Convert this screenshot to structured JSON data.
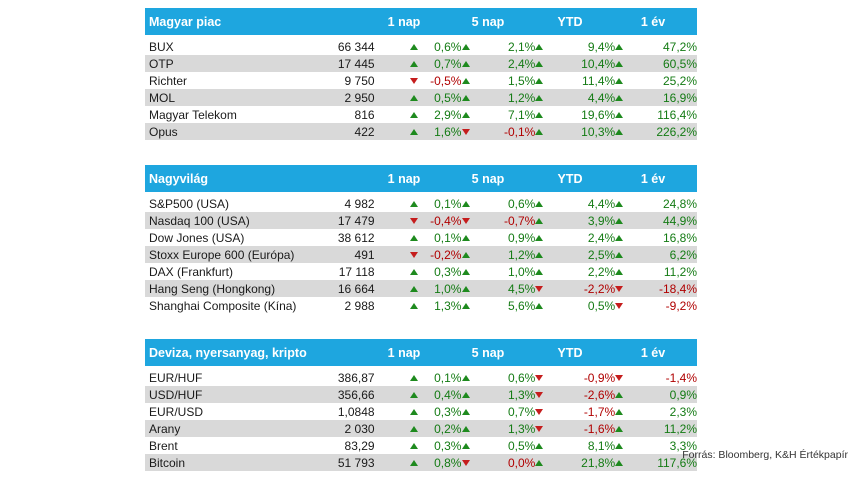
{
  "colors": {
    "header_bg": "#1ea6df",
    "alt_row": "#d9d9d9",
    "positive": "#147b14",
    "negative": "#b00000"
  },
  "columns": [
    "1 nap",
    "5 nap",
    "YTD",
    "1 év"
  ],
  "sections": [
    {
      "title": "Magyar piac",
      "rows": [
        {
          "name": "BUX",
          "value": "66 344",
          "d1": "0,6%",
          "d5": "2,1%",
          "ytd": "9,4%",
          "y1": "47,2%"
        },
        {
          "name": "OTP",
          "value": "17 445",
          "d1": "0,7%",
          "d5": "2,4%",
          "ytd": "10,4%",
          "y1": "60,5%"
        },
        {
          "name": "Richter",
          "value": "9 750",
          "d1": "-0,5%",
          "d5": "1,5%",
          "ytd": "11,4%",
          "y1": "25,2%"
        },
        {
          "name": "MOL",
          "value": "2 950",
          "d1": "0,5%",
          "d5": "1,2%",
          "ytd": "4,4%",
          "y1": "16,9%"
        },
        {
          "name": "Magyar Telekom",
          "value": "816",
          "d1": "2,9%",
          "d5": "7,1%",
          "ytd": "19,6%",
          "y1": "116,4%"
        },
        {
          "name": "Opus",
          "value": "422",
          "d1": "1,6%",
          "d5": "-0,1%",
          "ytd": "10,3%",
          "y1": "226,2%"
        }
      ]
    },
    {
      "title": "Nagyvilág",
      "rows": [
        {
          "name": "S&P500 (USA)",
          "value": "4 982",
          "d1": "0,1%",
          "d5": "0,6%",
          "ytd": "4,4%",
          "y1": "24,8%"
        },
        {
          "name": "Nasdaq 100 (USA)",
          "value": "17 479",
          "d1": "-0,4%",
          "d5": "-0,7%",
          "ytd": "3,9%",
          "y1": "44,9%"
        },
        {
          "name": "Dow Jones (USA)",
          "value": "38 612",
          "d1": "0,1%",
          "d5": "0,9%",
          "ytd": "2,4%",
          "y1": "16,8%"
        },
        {
          "name": "Stoxx Europe 600 (Európa)",
          "value": "491",
          "d1": "-0,2%",
          "d5": "1,2%",
          "ytd": "2,5%",
          "y1": "6,2%"
        },
        {
          "name": "DAX (Frankfurt)",
          "value": "17 118",
          "d1": "0,3%",
          "d5": "1,0%",
          "ytd": "2,2%",
          "y1": "11,2%"
        },
        {
          "name": "Hang Seng (Hongkong)",
          "value": "16 664",
          "d1": "1,0%",
          "d5": "4,5%",
          "ytd": "-2,2%",
          "y1": "-18,4%"
        },
        {
          "name": "Shanghai Composite (Kína)",
          "value": "2 988",
          "d1": "1,3%",
          "d5": "5,6%",
          "ytd": "0,5%",
          "y1": "-9,2%"
        }
      ]
    },
    {
      "title": "Deviza, nyersanyag, kripto",
      "rows": [
        {
          "name": "EUR/HUF",
          "value": "386,87",
          "d1": "0,1%",
          "d5": "0,6%",
          "ytd": "-0,9%",
          "y1": "-1,4%"
        },
        {
          "name": "USD/HUF",
          "value": "356,66",
          "d1": "0,4%",
          "d5": "1,3%",
          "ytd": "-2,6%",
          "y1": "0,9%"
        },
        {
          "name": "EUR/USD",
          "value": "1,0848",
          "d1": "0,3%",
          "d5": "0,7%",
          "ytd": "-1,7%",
          "y1": "2,3%"
        },
        {
          "name": "Arany",
          "value": "2 030",
          "d1": "0,2%",
          "d5": "1,3%",
          "ytd": "-1,6%",
          "y1": "11,2%"
        },
        {
          "name": "Brent",
          "value": "83,29",
          "d1": "0,3%",
          "d5": "0,5%",
          "ytd": "8,1%",
          "y1": "3,3%"
        },
        {
          "name": "Bitcoin",
          "value": "51 793",
          "d1": "0,8%",
          "d5": "0,0%",
          "ytd": "21,8%",
          "y1": "117,6%",
          "d5_dir": "down"
        }
      ]
    }
  ],
  "source": "Forrás: Bloomberg, K&H Értékpapír"
}
